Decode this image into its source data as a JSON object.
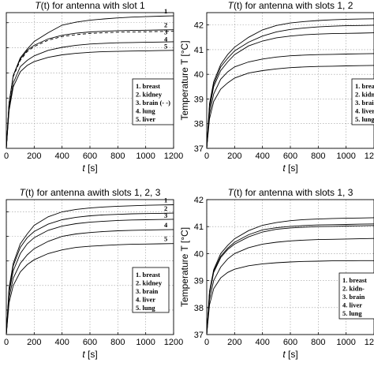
{
  "chart_data": [
    {
      "type": "line",
      "title_prefix": "T",
      "title_var": "(t)",
      "title_rest": " for antenna with slot 1",
      "xlabel_var": "t",
      "xlabel_unit": " [s]",
      "ylabel": "",
      "xlim": [
        0,
        1200
      ],
      "ylim": [
        37,
        42.4
      ],
      "xticks": [
        0,
        200,
        400,
        600,
        800,
        1000,
        1200
      ],
      "xtick_labels": [
        "0",
        "200",
        "400",
        "600",
        "800",
        "1000",
        "1200"
      ],
      "yticks": [
        38,
        39,
        40,
        41,
        42
      ],
      "ytick_labels": [
        "",
        "",
        "",
        "",
        ""
      ],
      "legend": [
        "1. breast",
        "2. kidney",
        "3. brain (- -)",
        "4. lung",
        "5. liver"
      ],
      "legend_position": "right",
      "curve_labels": [
        "1",
        "2",
        "3",
        "4",
        "5"
      ],
      "x": [
        0,
        20,
        50,
        100,
        150,
        200,
        300,
        400,
        500,
        600,
        700,
        800,
        900,
        1000,
        1100,
        1200
      ],
      "series": [
        {
          "label": "1",
          "values": [
            37.0,
            38.8,
            39.9,
            40.6,
            40.95,
            41.25,
            41.6,
            41.9,
            42.02,
            42.1,
            42.15,
            42.19,
            42.22,
            42.24,
            42.26,
            42.27
          ]
        },
        {
          "label": "2",
          "values": [
            37.0,
            38.8,
            39.9,
            40.55,
            40.9,
            41.1,
            41.35,
            41.5,
            41.58,
            41.63,
            41.66,
            41.68,
            41.69,
            41.7,
            41.71,
            41.72
          ]
        },
        {
          "label": "3",
          "dashed": true,
          "values": [
            37.0,
            38.8,
            39.85,
            40.5,
            40.85,
            41.05,
            41.3,
            41.45,
            41.52,
            41.57,
            41.6,
            41.62,
            41.63,
            41.64,
            41.65,
            41.66
          ]
        },
        {
          "label": "4",
          "values": [
            37.0,
            38.6,
            39.6,
            40.25,
            40.5,
            40.68,
            40.9,
            41.02,
            41.1,
            41.15,
            41.18,
            41.2,
            41.21,
            41.22,
            41.23,
            41.24
          ]
        },
        {
          "label": "5",
          "values": [
            37.0,
            38.5,
            39.45,
            40.05,
            40.3,
            40.45,
            40.62,
            40.72,
            40.78,
            40.82,
            40.85,
            40.86,
            40.87,
            40.88,
            40.89,
            40.9
          ]
        }
      ]
    },
    {
      "type": "line",
      "title_prefix": "T",
      "title_var": "(t)",
      "title_rest": " for antenna with slots 1, 2",
      "xlabel_var": "t",
      "xlabel_unit": " [s]",
      "ylabel": "Temperature T [°C]",
      "xlim": [
        0,
        1200
      ],
      "ylim": [
        37,
        42.5
      ],
      "xticks": [
        0,
        200,
        400,
        600,
        800,
        1000,
        1200
      ],
      "xtick_labels": [
        "0",
        "200",
        "400",
        "600",
        "800",
        "1000",
        "1200"
      ],
      "yticks": [
        37,
        38,
        39,
        40,
        41,
        42
      ],
      "ytick_labels": [
        "37",
        "38",
        "39",
        "40",
        "41",
        "42"
      ],
      "legend": [
        "1. breast",
        "2. kidne",
        "3. brain",
        "4. liver",
        "5. lung"
      ],
      "legend_position": "right",
      "curve_labels": [],
      "x": [
        0,
        20,
        50,
        100,
        150,
        200,
        300,
        400,
        500,
        600,
        700,
        800,
        900,
        1000,
        1100,
        1200
      ],
      "series": [
        {
          "label": "1",
          "values": [
            37.0,
            38.8,
            39.7,
            40.4,
            40.8,
            41.1,
            41.5,
            41.8,
            41.98,
            42.08,
            42.14,
            42.18,
            42.21,
            42.23,
            42.24,
            42.25
          ]
        },
        {
          "label": "2",
          "values": [
            37.0,
            38.7,
            39.6,
            40.3,
            40.65,
            40.95,
            41.3,
            41.55,
            41.72,
            41.82,
            41.88,
            41.92,
            41.95,
            41.97,
            41.98,
            41.99
          ]
        },
        {
          "label": "3",
          "values": [
            37.0,
            38.6,
            39.5,
            40.15,
            40.5,
            40.8,
            41.15,
            41.35,
            41.48,
            41.55,
            41.6,
            41.63,
            41.65,
            41.66,
            41.67,
            41.68
          ]
        },
        {
          "label": "4",
          "values": [
            37.0,
            38.4,
            39.2,
            39.8,
            40.1,
            40.3,
            40.5,
            40.62,
            40.7,
            40.75,
            40.78,
            40.8,
            40.81,
            40.82,
            40.83,
            40.84
          ]
        },
        {
          "label": "5",
          "values": [
            37.0,
            38.2,
            38.9,
            39.4,
            39.65,
            39.85,
            40.05,
            40.15,
            40.22,
            40.27,
            40.3,
            40.32,
            40.33,
            40.34,
            40.35,
            40.36
          ]
        }
      ]
    },
    {
      "type": "line",
      "title_prefix": "T",
      "title_var": "(t)",
      "title_rest": " for antenna awith slots 1, 2, 3",
      "xlabel_var": "t",
      "xlabel_unit": " [s]",
      "ylabel": "",
      "xlim": [
        0,
        1200
      ],
      "ylim": [
        37,
        42.5
      ],
      "xticks": [
        0,
        200,
        400,
        600,
        800,
        1000,
        1200
      ],
      "xtick_labels": [
        "0",
        "200",
        "400",
        "600",
        "800",
        "1000",
        "1200"
      ],
      "yticks": [
        38,
        39,
        40,
        41,
        42
      ],
      "ytick_labels": [
        "",
        "",
        "",
        "",
        ""
      ],
      "legend": [
        "1. breast",
        "2. kidney",
        "3. brain",
        "4. liver",
        "5. lung"
      ],
      "legend_position": "right",
      "curve_labels": [
        "1",
        "2",
        "3",
        "4",
        "5"
      ],
      "x": [
        0,
        20,
        50,
        100,
        150,
        200,
        300,
        400,
        500,
        600,
        700,
        800,
        900,
        1000,
        1100,
        1200
      ],
      "series": [
        {
          "label": "1",
          "values": [
            37.0,
            38.9,
            39.9,
            40.7,
            41.1,
            41.45,
            41.8,
            42.0,
            42.1,
            42.16,
            42.2,
            42.23,
            42.25,
            42.27,
            42.28,
            42.29
          ]
        },
        {
          "label": "2",
          "values": [
            37.0,
            38.8,
            39.8,
            40.55,
            40.95,
            41.2,
            41.5,
            41.68,
            41.78,
            41.84,
            41.88,
            41.9,
            41.92,
            41.93,
            41.94,
            41.95
          ]
        },
        {
          "label": "3",
          "values": [
            37.0,
            38.7,
            39.6,
            40.3,
            40.7,
            40.95,
            41.25,
            41.42,
            41.52,
            41.58,
            41.62,
            41.65,
            41.67,
            41.68,
            41.69,
            41.7
          ]
        },
        {
          "label": "4",
          "values": [
            37.0,
            38.5,
            39.3,
            39.9,
            40.25,
            40.5,
            40.8,
            41.0,
            41.1,
            41.16,
            41.2,
            41.23,
            41.25,
            41.26,
            41.27,
            41.28
          ]
        },
        {
          "label": "5",
          "values": [
            37.0,
            38.3,
            39.0,
            39.55,
            39.85,
            40.05,
            40.3,
            40.45,
            40.55,
            40.6,
            40.63,
            40.66,
            40.68,
            40.69,
            40.7,
            40.71
          ]
        }
      ]
    },
    {
      "type": "line",
      "title_prefix": "T",
      "title_var": "(t)",
      "title_rest": " for antenna with slots 1, 3",
      "xlabel_var": "t",
      "xlabel_unit": " [s]",
      "ylabel": "Temperature T [°C]",
      "xlim": [
        0,
        1200
      ],
      "ylim": [
        37,
        42
      ],
      "xticks": [
        0,
        200,
        400,
        600,
        800,
        1000,
        1200
      ],
      "xtick_labels": [
        "0",
        "200",
        "400",
        "600",
        "800",
        "1000",
        "1200"
      ],
      "yticks": [
        37,
        38,
        39,
        40,
        41,
        42
      ],
      "ytick_labels": [
        "37",
        "38",
        "39",
        "40",
        "41",
        "42"
      ],
      "legend": [
        "1. breast",
        "2. kidn-",
        "3. brain",
        "4. liver",
        "5. lung"
      ],
      "legend_position": "right",
      "curve_labels": [],
      "x": [
        0,
        20,
        50,
        100,
        150,
        200,
        300,
        400,
        500,
        600,
        700,
        800,
        900,
        1000,
        1100,
        1200
      ],
      "series": [
        {
          "label": "1",
          "values": [
            37.0,
            38.6,
            39.4,
            40.0,
            40.3,
            40.55,
            40.85,
            41.05,
            41.15,
            41.22,
            41.26,
            41.28,
            41.3,
            41.31,
            41.32,
            41.33
          ]
        },
        {
          "label": "2",
          "values": [
            37.0,
            38.55,
            39.35,
            39.9,
            40.2,
            40.42,
            40.7,
            40.88,
            40.96,
            41.01,
            41.04,
            41.06,
            41.07,
            41.08,
            41.09,
            41.1
          ]
        },
        {
          "label": "3",
          "values": [
            37.0,
            38.5,
            39.3,
            39.85,
            40.15,
            40.35,
            40.62,
            40.8,
            40.9,
            40.95,
            40.98,
            41.0,
            41.01,
            41.02,
            41.03,
            41.04
          ]
        },
        {
          "label": "4",
          "values": [
            37.0,
            38.3,
            39.0,
            39.5,
            39.8,
            40.0,
            40.22,
            40.35,
            40.42,
            40.47,
            40.5,
            40.52,
            40.53,
            40.54,
            40.55,
            40.56
          ]
        },
        {
          "label": "5",
          "values": [
            37.0,
            38.1,
            38.7,
            39.1,
            39.3,
            39.42,
            39.55,
            39.62,
            39.66,
            39.69,
            39.71,
            39.72,
            39.73,
            39.73,
            39.74,
            39.74
          ]
        }
      ]
    }
  ]
}
